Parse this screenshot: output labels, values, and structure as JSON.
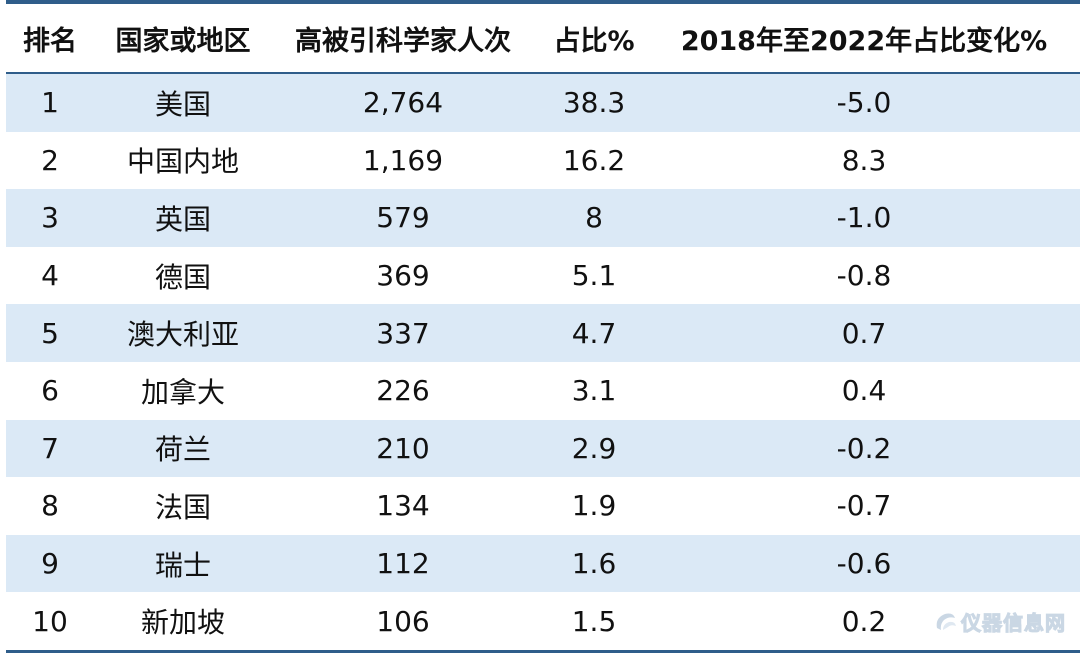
{
  "table": {
    "headers": [
      "排名",
      "国家或地区",
      "高被引科学家人次",
      "占比%",
      "2018年至2022年占比变化%"
    ],
    "rows": [
      [
        "1",
        "美国",
        "2,764",
        "38.3",
        "-5.0"
      ],
      [
        "2",
        "中国内地",
        "1,169",
        "16.2",
        "8.3"
      ],
      [
        "3",
        "英国",
        "579",
        "8",
        "-1.0"
      ],
      [
        "4",
        "德国",
        "369",
        "5.1",
        "-0.8"
      ],
      [
        "5",
        "澳大利亚",
        "337",
        "4.7",
        "0.7"
      ],
      [
        "6",
        "加拿大",
        "226",
        "3.1",
        "0.4"
      ],
      [
        "7",
        "荷兰",
        "210",
        "2.9",
        "-0.2"
      ],
      [
        "8",
        "法国",
        "134",
        "1.9",
        "-0.7"
      ],
      [
        "9",
        "瑞士",
        "112",
        "1.6",
        "-0.6"
      ],
      [
        "10",
        "新加坡",
        "106",
        "1.5",
        "0.2"
      ]
    ]
  },
  "watermark": {
    "text": "仪器信息网",
    "icon": "logo-icon"
  },
  "colors": {
    "rule": "#2f5d8a",
    "shade": "#dbe9f6"
  }
}
